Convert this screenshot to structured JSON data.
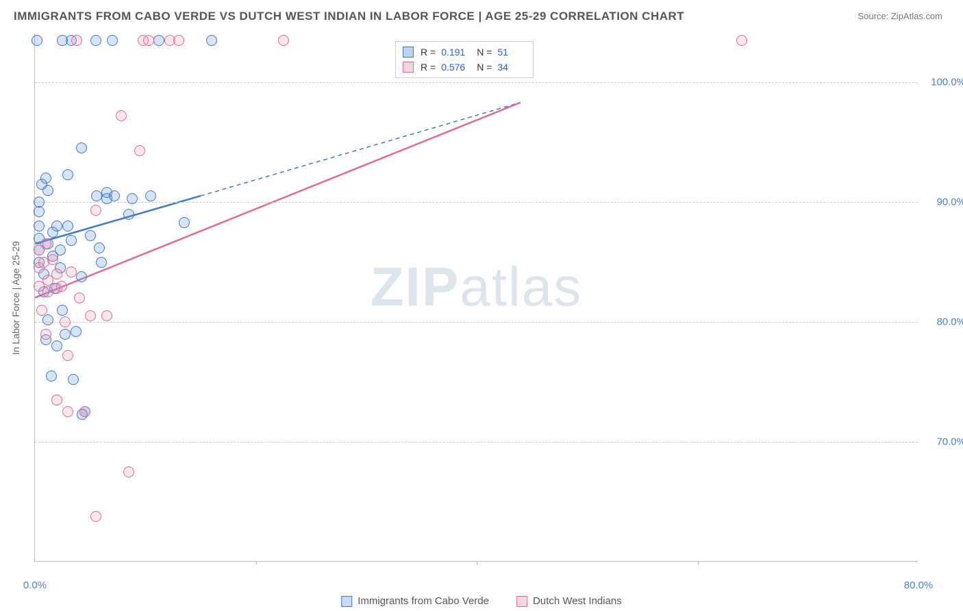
{
  "title": "IMMIGRANTS FROM CABO VERDE VS DUTCH WEST INDIAN IN LABOR FORCE | AGE 25-29 CORRELATION CHART",
  "source_label": "Source: ZipAtlas.com",
  "yaxis_label": "In Labor Force | Age 25-29",
  "watermark_a": "ZIP",
  "watermark_b": "atlas",
  "chart": {
    "type": "scatter",
    "background_color": "#ffffff",
    "grid_color_h": "#cccccc",
    "grid_color_v": "#dddddd",
    "axis_color": "#bbbbbb",
    "xlim": [
      0,
      80
    ],
    "ylim": [
      60,
      104
    ],
    "x_ticks": [
      0,
      20,
      40,
      60,
      80
    ],
    "x_tick_labels": [
      "0.0%",
      "",
      "",
      "",
      "80.0%"
    ],
    "y_gridlines": [
      70,
      80,
      90,
      100
    ],
    "y_tick_labels": [
      "70.0%",
      "80.0%",
      "90.0%",
      "100.0%"
    ],
    "marker_radius": 8,
    "marker_stroke_width": 1.5,
    "marker_fill_opacity": 0.25,
    "tick_label_color": "#4a7fd8",
    "axis_label_color": "#666666",
    "title_color": "#555555",
    "title_fontsize": 17,
    "tick_fontsize": 15
  },
  "series": [
    {
      "name": "Immigrants from Cabo Verde",
      "color": "#5b8fd6",
      "stroke": "#3f78c8",
      "R": "0.191",
      "N": "51",
      "trend": {
        "x1": 0,
        "y1": 86.5,
        "x2": 15,
        "y2": 90.5,
        "dash_x2": 44,
        "dash_y2": 98.3,
        "width": 2.5
      },
      "points": [
        [
          0.2,
          103.5
        ],
        [
          2.5,
          103.5
        ],
        [
          3.3,
          103.5
        ],
        [
          5.5,
          103.5
        ],
        [
          7.0,
          103.5
        ],
        [
          11.2,
          103.5
        ],
        [
          16.0,
          103.5
        ],
        [
          0.4,
          89.2
        ],
        [
          0.4,
          88.0
        ],
        [
          0.4,
          87.0
        ],
        [
          0.4,
          86.0
        ],
        [
          0.4,
          85.0
        ],
        [
          0.4,
          90.0
        ],
        [
          1.0,
          92.0
        ],
        [
          1.2,
          91.0
        ],
        [
          1.2,
          86.5
        ],
        [
          1.6,
          87.5
        ],
        [
          1.6,
          85.5
        ],
        [
          2.0,
          88.0
        ],
        [
          2.3,
          86.0
        ],
        [
          2.3,
          84.5
        ],
        [
          3.0,
          92.3
        ],
        [
          3.0,
          88.0
        ],
        [
          3.3,
          86.8
        ],
        [
          3.7,
          79.2
        ],
        [
          4.2,
          94.5
        ],
        [
          4.2,
          83.8
        ],
        [
          5.0,
          87.2
        ],
        [
          5.6,
          90.5
        ],
        [
          5.8,
          86.2
        ],
        [
          6.0,
          85.0
        ],
        [
          6.5,
          90.8
        ],
        [
          6.5,
          90.3
        ],
        [
          7.2,
          90.5
        ],
        [
          8.5,
          89.0
        ],
        [
          8.8,
          90.3
        ],
        [
          10.5,
          90.5
        ],
        [
          1.8,
          82.8
        ],
        [
          2.5,
          81.0
        ],
        [
          2.7,
          79.0
        ],
        [
          1.0,
          78.5
        ],
        [
          1.5,
          75.5
        ],
        [
          3.5,
          75.2
        ],
        [
          4.5,
          72.5
        ],
        [
          4.3,
          72.3
        ],
        [
          13.5,
          88.3
        ],
        [
          0.8,
          84.0
        ],
        [
          0.8,
          82.5
        ],
        [
          1.2,
          80.2
        ],
        [
          2.0,
          78.0
        ],
        [
          0.6,
          91.5
        ]
      ]
    },
    {
      "name": "Dutch West Indians",
      "color": "#e997b3",
      "stroke": "#e06a94",
      "R": "0.576",
      "N": "34",
      "trend": {
        "x1": 0,
        "y1": 82.0,
        "x2": 44,
        "y2": 98.3,
        "width": 2.5
      },
      "points": [
        [
          3.8,
          103.5
        ],
        [
          9.8,
          103.5
        ],
        [
          10.3,
          103.5
        ],
        [
          12.2,
          103.5
        ],
        [
          13.0,
          103.5
        ],
        [
          22.5,
          103.5
        ],
        [
          64.0,
          103.5
        ],
        [
          7.8,
          97.2
        ],
        [
          9.5,
          94.3
        ],
        [
          0.4,
          86.0
        ],
        [
          0.4,
          84.5
        ],
        [
          0.8,
          85.0
        ],
        [
          1.0,
          86.5
        ],
        [
          1.2,
          83.5
        ],
        [
          1.2,
          82.5
        ],
        [
          1.6,
          85.2
        ],
        [
          2.0,
          84.0
        ],
        [
          2.0,
          82.8
        ],
        [
          2.4,
          83.0
        ],
        [
          2.7,
          80.0
        ],
        [
          3.3,
          84.2
        ],
        [
          4.0,
          82.0
        ],
        [
          5.0,
          80.5
        ],
        [
          5.5,
          89.3
        ],
        [
          6.5,
          80.5
        ],
        [
          3.0,
          77.2
        ],
        [
          3.0,
          72.5
        ],
        [
          4.5,
          72.5
        ],
        [
          2.0,
          73.5
        ],
        [
          5.5,
          63.8
        ],
        [
          8.5,
          67.5
        ],
        [
          0.6,
          81.0
        ],
        [
          1.0,
          79.0
        ],
        [
          0.4,
          83.0
        ]
      ]
    }
  ],
  "stats_legend": {
    "R_label": "R =",
    "N_label": "N ="
  },
  "bottom_legend": [
    {
      "label": "Immigrants from Cabo Verde",
      "fill": "#c9dbf2",
      "stroke": "#3f78c8"
    },
    {
      "label": "Dutch West Indians",
      "fill": "#f6d6e1",
      "stroke": "#e06a94"
    }
  ]
}
